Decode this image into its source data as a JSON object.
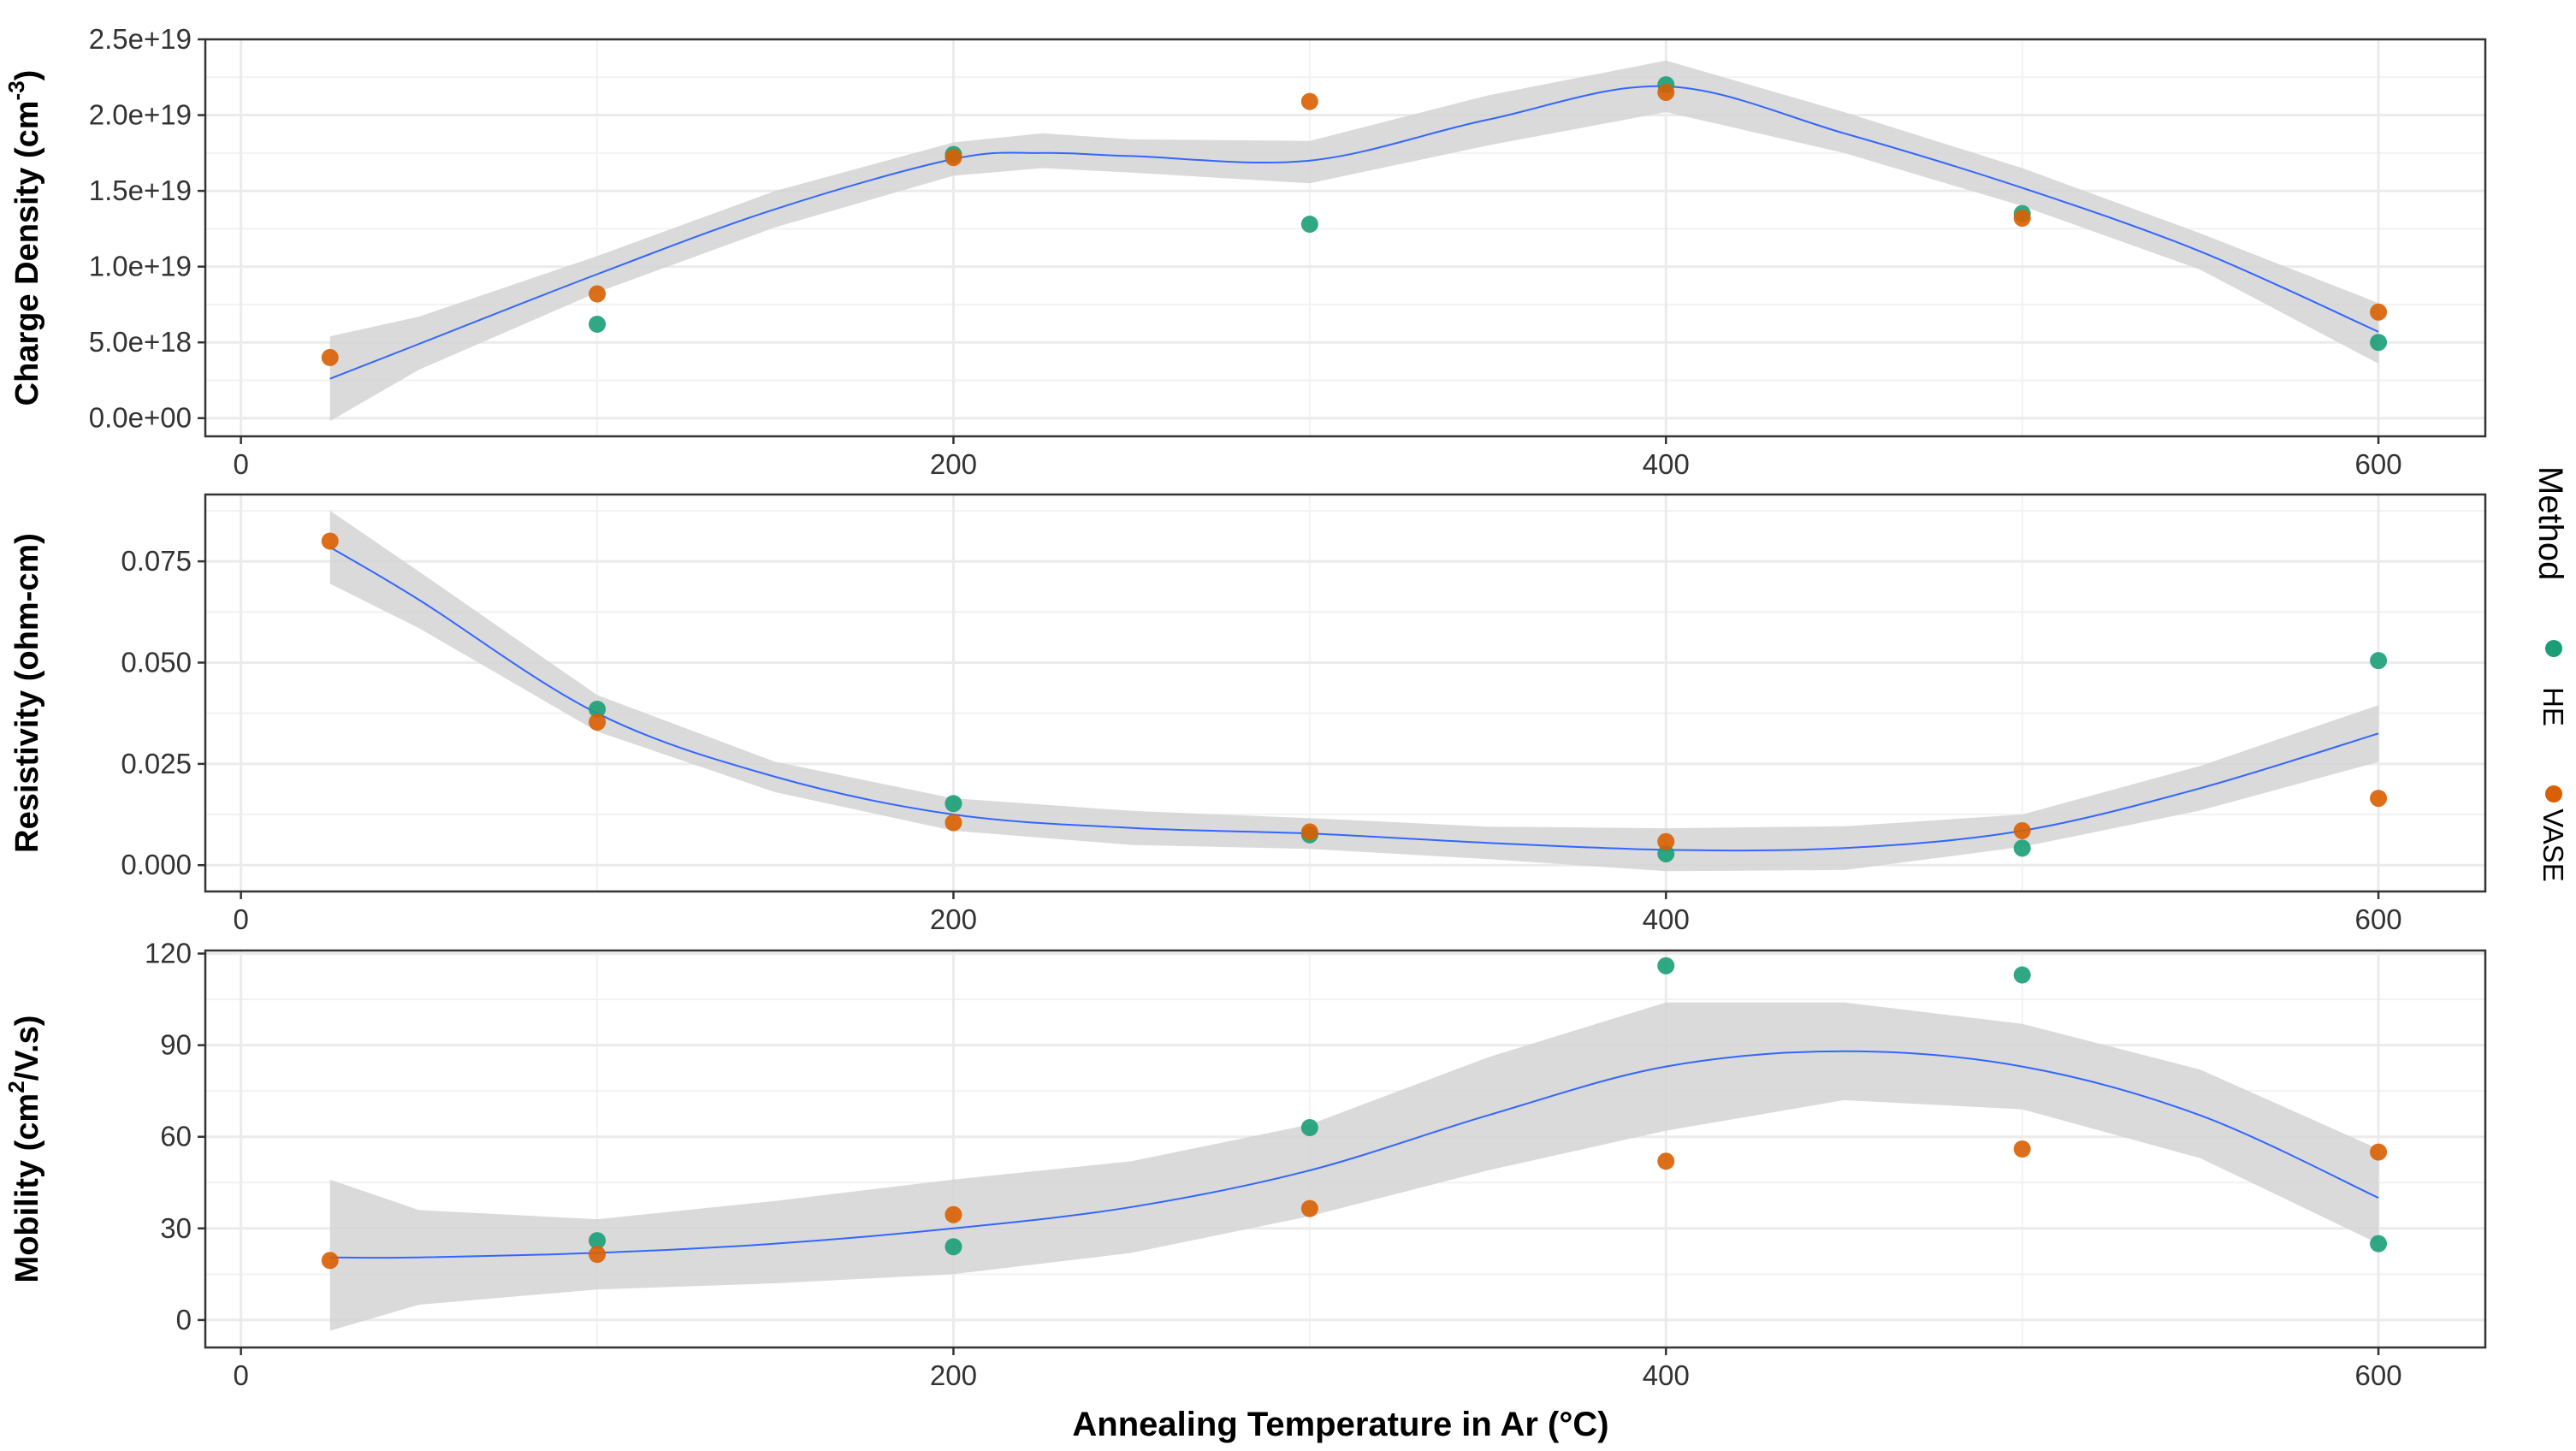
{
  "chart_data": {
    "type": "scatter",
    "xlabel": "Annealing Temperature in Ar (°C)",
    "xlim": [
      -10,
      630
    ],
    "x_ticks": [
      0,
      200,
      400,
      600
    ],
    "legend": {
      "title": "Method",
      "position": "right",
      "entries": [
        {
          "name": "HE",
          "color": "#1b9e77"
        },
        {
          "name": "VASE",
          "color": "#d95f02"
        }
      ]
    },
    "smooth_color": "#3366ff",
    "ribbon_color": "#d4d4d4",
    "panels": [
      {
        "id": "charge",
        "ylabel_main": "Charge Density (cm",
        "ylabel_sup": "-3",
        "ylabel_end": ")",
        "ylim": [
          -1.2e+18,
          2.5e+19
        ],
        "y_ticks": [
          0,
          5e+18,
          1e+19,
          1.5e+19,
          2e+19,
          2.5e+19
        ],
        "y_tick_labels": [
          "0.0e+00",
          "5.0e+18",
          "1.0e+19",
          "1.5e+19",
          "2.0e+19",
          "2.5e+19"
        ],
        "series": [
          {
            "name": "HE",
            "x": [
              100,
              200,
              300,
              400,
              500,
              600
            ],
            "y": [
              6.2e+18,
              1.74e+19,
              1.28e+19,
              2.2e+19,
              1.35e+19,
              5e+18
            ]
          },
          {
            "name": "VASE",
            "x": [
              25,
              100,
              200,
              300,
              400,
              500,
              600
            ],
            "y": [
              4e+18,
              8.2e+18,
              1.72e+19,
              2.09e+19,
              2.15e+19,
              1.32e+19,
              7e+18
            ]
          }
        ],
        "smooth": {
          "x": [
            25,
            50,
            100,
            150,
            200,
            225,
            250,
            300,
            350,
            400,
            450,
            500,
            550,
            600
          ],
          "y": [
            2.6e+18,
            4.9e+18,
            9.5e+18,
            1.38e+19,
            1.71e+19,
            1.75e+19,
            1.73e+19,
            1.7e+19,
            1.97e+19,
            2.19e+19,
            1.88e+19,
            1.52e+19,
            1.1e+19,
            5.7e+18
          ],
          "lower": [
            -2e+17,
            3.2e+18,
            8.3e+18,
            1.26e+19,
            1.6e+19,
            1.65e+19,
            1.62e+19,
            1.55e+19,
            1.8e+19,
            2.02e+19,
            1.75e+19,
            1.4e+19,
            9.8e+18,
            3.6e+18
          ],
          "upper": [
            5.4e+18,
            6.7e+18,
            1.07e+19,
            1.5e+19,
            1.82e+19,
            1.88e+19,
            1.84e+19,
            1.83e+19,
            2.13e+19,
            2.36e+19,
            2.02e+19,
            1.65e+19,
            1.22e+19,
            7.6e+18
          ]
        }
      },
      {
        "id": "resistivity",
        "ylabel_main": "Resistivity (ohm-cm)",
        "ylabel_sup": "",
        "ylabel_end": "",
        "ylim": [
          -0.0065,
          0.0915
        ],
        "y_ticks": [
          0,
          0.025,
          0.05,
          0.075
        ],
        "y_tick_labels": [
          "0.000",
          "0.025",
          "0.050",
          "0.075"
        ],
        "series": [
          {
            "name": "HE",
            "x": [
              100,
              200,
              300,
              400,
              500,
              600
            ],
            "y": [
              0.0385,
              0.0152,
              0.0075,
              0.0028,
              0.0042,
              0.0505
            ]
          },
          {
            "name": "VASE",
            "x": [
              25,
              100,
              200,
              300,
              400,
              500,
              600
            ],
            "y": [
              0.08,
              0.0353,
              0.0105,
              0.0082,
              0.0058,
              0.0085,
              0.0165
            ]
          }
        ],
        "smooth": {
          "x": [
            25,
            50,
            100,
            150,
            200,
            250,
            300,
            350,
            400,
            450,
            500,
            550,
            600
          ],
          "y": [
            0.0785,
            0.0655,
            0.0375,
            0.0218,
            0.0125,
            0.0092,
            0.0078,
            0.0055,
            0.0038,
            0.0042,
            0.0085,
            0.019,
            0.0325
          ],
          "lower": [
            0.0695,
            0.0585,
            0.033,
            0.018,
            0.0085,
            0.005,
            0.004,
            0.0015,
            -0.0015,
            -0.0012,
            0.0045,
            0.0135,
            0.0255
          ],
          "upper": [
            0.0875,
            0.0725,
            0.042,
            0.0255,
            0.0165,
            0.0134,
            0.0116,
            0.0095,
            0.0091,
            0.0096,
            0.0125,
            0.0245,
            0.0395
          ]
        }
      },
      {
        "id": "mobility",
        "ylabel_main": "Mobility (cm",
        "ylabel_sup": "2",
        "ylabel_end": "/V.s)",
        "ylim": [
          -9,
          121
        ],
        "y_ticks": [
          0,
          30,
          60,
          90,
          120
        ],
        "y_tick_labels": [
          "0",
          "30",
          "60",
          "90",
          "120"
        ],
        "series": [
          {
            "name": "HE",
            "x": [
              100,
              200,
              300,
              400,
              500,
              600
            ],
            "y": [
              26,
              24,
              63,
              116,
              113,
              25
            ]
          },
          {
            "name": "VASE",
            "x": [
              25,
              100,
              200,
              300,
              400,
              500,
              600
            ],
            "y": [
              19.5,
              21.5,
              34.5,
              36.5,
              52,
              56,
              55
            ]
          }
        ],
        "smooth": {
          "x": [
            25,
            50,
            100,
            150,
            200,
            250,
            300,
            350,
            400,
            450,
            500,
            550,
            600
          ],
          "y": [
            20.5,
            20.5,
            22,
            25,
            30,
            37,
            49,
            67,
            83,
            88,
            83,
            67,
            40
          ],
          "lower": [
            -3.5,
            5,
            10,
            12,
            15,
            22,
            34,
            49,
            62,
            72,
            69,
            53,
            25
          ],
          "upper": [
            46,
            36,
            33,
            39,
            46,
            52,
            64,
            86,
            104,
            104,
            97,
            82,
            56
          ]
        }
      }
    ]
  }
}
